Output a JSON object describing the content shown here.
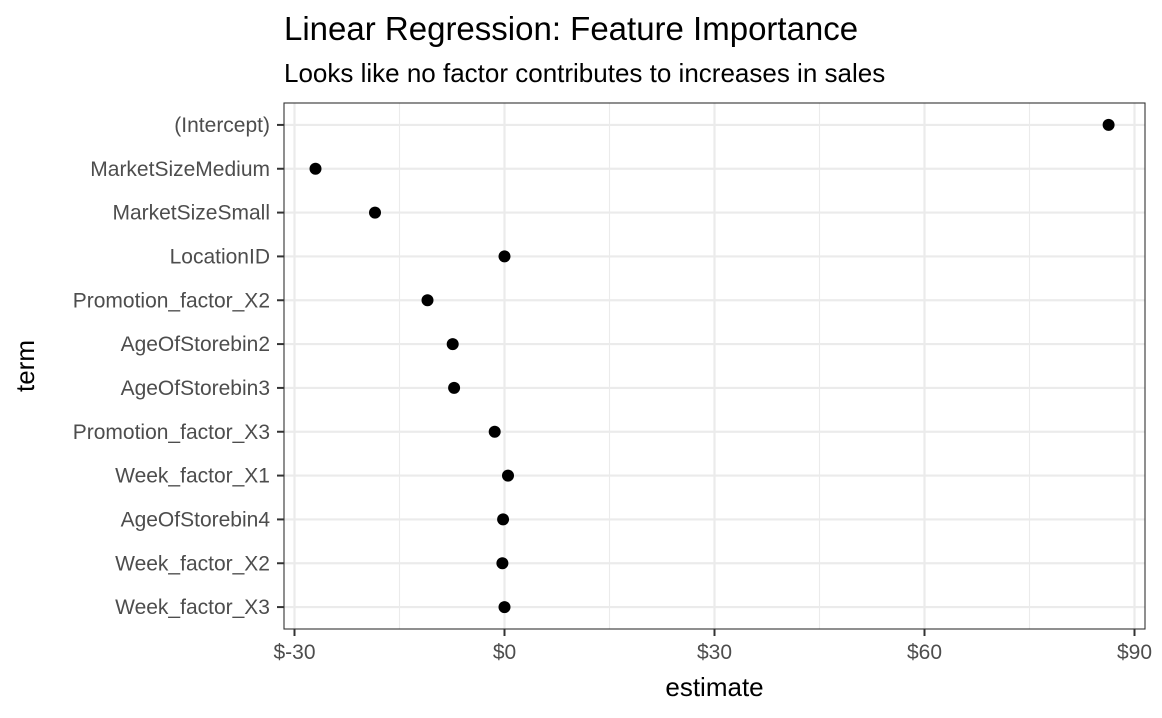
{
  "chart_data": {
    "type": "scatter",
    "title": "Linear Regression: Feature Importance",
    "subtitle": "Looks like no factor contributes to increases in sales",
    "xlabel": "estimate",
    "ylabel": "term",
    "x_tick_values": [
      -30,
      0,
      30,
      60,
      90
    ],
    "x_tick_labels": [
      "$-30",
      "$0",
      "$30",
      "$60",
      "$90"
    ],
    "xlim": [
      -31.5,
      91.5
    ],
    "grid": true,
    "legend": "none",
    "categories": [
      "(Intercept)",
      "MarketSizeMedium",
      "MarketSizeSmall",
      "LocationID",
      "Promotion_factor_X2",
      "AgeOfStorebin2",
      "AgeOfStorebin3",
      "Promotion_factor_X3",
      "Week_factor_X1",
      "AgeOfStorebin4",
      "Week_factor_X2",
      "Week_factor_X3"
    ],
    "values": [
      86.3,
      -27.0,
      -18.5,
      0.0,
      -11.0,
      -7.4,
      -7.2,
      -1.4,
      0.5,
      -0.2,
      -0.3,
      0.0
    ],
    "point_color": "#000000"
  }
}
